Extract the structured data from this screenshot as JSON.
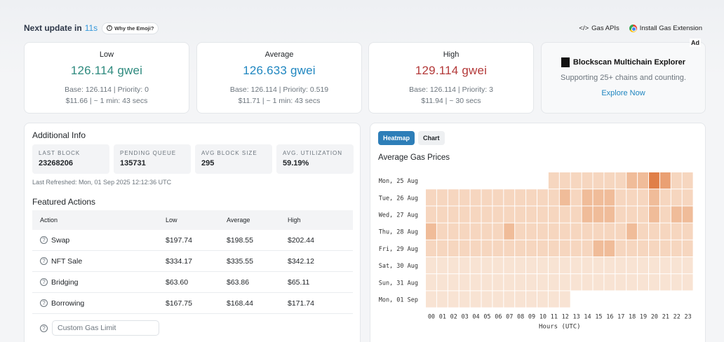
{
  "topbar": {
    "next_update_label": "Next update in",
    "next_update_secs": "11s",
    "emoji_button": "Why the Emoji?",
    "gas_apis": "Gas APIs",
    "install_ext": "Install Gas Extension"
  },
  "gas": {
    "low": {
      "title": "Low",
      "price": "126.114 gwei",
      "line1": "Base: 126.114 | Priority: 0",
      "line2": "$11.66 | ~ 1 min: 43 secs"
    },
    "average": {
      "title": "Average",
      "price": "126.633 gwei",
      "line1": "Base: 126.114 | Priority: 0.519",
      "line2": "$11.71 | ~ 1 min: 43 secs"
    },
    "high": {
      "title": "High",
      "price": "129.114 gwei",
      "line1": "Base: 126.114 | Priority: 3",
      "line2": "$11.94 | ~ 30 secs"
    }
  },
  "ad": {
    "badge": "Ad",
    "title": "Blockscan Multichain Explorer",
    "subtitle": "Supporting 25+ chains and counting.",
    "link": "Explore Now"
  },
  "info": {
    "title": "Additional Info",
    "stats": [
      {
        "label": "Last Block",
        "value": "23268206"
      },
      {
        "label": "Pending Queue",
        "value": "135731"
      },
      {
        "label": "Avg Block Size",
        "value": "295"
      },
      {
        "label": "Avg. Utilization",
        "value": "59.19%"
      }
    ],
    "refreshed": "Last Refreshed: Mon, 01 Sep 2025 12:12:36 UTC",
    "featured_title": "Featured Actions",
    "headers": [
      "Action",
      "Low",
      "Average",
      "High"
    ],
    "rows": [
      {
        "action": "Swap",
        "low": "$197.74",
        "avg": "$198.55",
        "high": "$202.44"
      },
      {
        "action": "NFT Sale",
        "low": "$334.17",
        "avg": "$335.55",
        "high": "$342.12"
      },
      {
        "action": "Bridging",
        "low": "$63.60",
        "avg": "$63.86",
        "high": "$65.11"
      },
      {
        "action": "Borrowing",
        "low": "$167.75",
        "avg": "$168.44",
        "high": "$171.74"
      }
    ],
    "custom_placeholder": "Custom Gas Limit"
  },
  "chart_panel": {
    "tabs": [
      "Heatmap",
      "Chart"
    ],
    "active_tab": "Heatmap",
    "title": "Average Gas Prices"
  },
  "chart_data": {
    "type": "heatmap",
    "title": "Average Gas Prices",
    "xlabel": "Hours (UTC)",
    "ylabel": "",
    "x": [
      "00",
      "01",
      "02",
      "03",
      "04",
      "05",
      "06",
      "07",
      "08",
      "09",
      "10",
      "11",
      "12",
      "13",
      "14",
      "15",
      "16",
      "17",
      "18",
      "19",
      "20",
      "21",
      "22",
      "23"
    ],
    "y": [
      "Mon, 25 Aug",
      "Tue, 26 Aug",
      "Wed, 27 Aug",
      "Thu, 28 Aug",
      "Fri, 29 Aug",
      "Sat, 30 Aug",
      "Sun, 31 Aug",
      "Mon, 01 Sep"
    ],
    "values": [
      [
        null,
        null,
        null,
        null,
        null,
        null,
        null,
        null,
        null,
        null,
        null,
        2,
        2,
        2,
        2,
        2,
        2,
        2,
        3,
        3,
        5,
        4,
        2,
        2
      ],
      [
        2,
        2,
        2,
        2,
        2,
        2,
        2,
        2,
        2,
        2,
        2,
        2,
        3,
        2,
        3,
        3,
        3,
        2,
        2,
        2,
        3,
        2,
        2,
        2
      ],
      [
        2,
        2,
        2,
        2,
        2,
        2,
        2,
        2,
        2,
        2,
        2,
        2,
        2,
        2,
        3,
        3,
        3,
        2,
        2,
        2,
        3,
        2,
        3,
        3
      ],
      [
        3,
        2,
        2,
        2,
        2,
        2,
        2,
        3,
        2,
        2,
        2,
        2,
        2,
        2,
        2,
        2,
        2,
        2,
        3,
        2,
        2,
        2,
        2,
        2
      ],
      [
        2,
        2,
        2,
        2,
        2,
        2,
        2,
        2,
        2,
        2,
        2,
        2,
        2,
        2,
        2,
        3,
        3,
        2,
        2,
        2,
        2,
        2,
        2,
        2
      ],
      [
        1,
        1,
        1,
        1,
        1,
        1,
        1,
        1,
        1,
        1,
        1,
        1,
        1,
        1,
        1,
        1,
        1,
        1,
        1,
        1,
        1,
        1,
        1,
        1
      ],
      [
        1,
        1,
        1,
        1,
        1,
        1,
        1,
        1,
        1,
        1,
        1,
        1,
        1,
        1,
        1,
        1,
        1,
        1,
        1,
        1,
        1,
        1,
        1,
        1
      ],
      [
        1,
        1,
        1,
        1,
        1,
        1,
        1,
        1,
        1,
        1,
        1,
        1,
        1,
        null,
        null,
        null,
        null,
        null,
        null,
        null,
        null,
        null,
        null,
        null
      ]
    ],
    "colors": {
      "1": "#f8e3d3",
      "2": "#f6d6bf",
      "3": "#f0bc99",
      "4": "#eaa073",
      "5": "#e07f48"
    }
  }
}
